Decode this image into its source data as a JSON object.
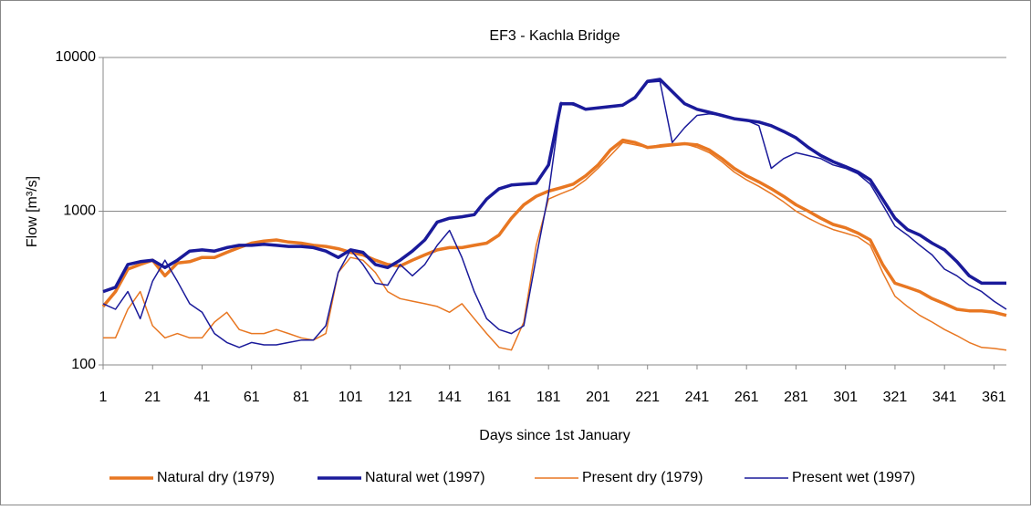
{
  "chart_data": {
    "type": "line",
    "title": "EF3 - Kachla Bridge",
    "x_label": "Days since 1st January",
    "y_label": "Flow [m³/s]",
    "x": [
      1,
      6,
      11,
      16,
      21,
      26,
      31,
      36,
      41,
      46,
      51,
      56,
      61,
      66,
      71,
      76,
      81,
      86,
      91,
      96,
      101,
      106,
      111,
      116,
      121,
      126,
      131,
      136,
      141,
      146,
      151,
      156,
      161,
      166,
      171,
      176,
      181,
      186,
      191,
      196,
      201,
      206,
      211,
      216,
      221,
      226,
      231,
      236,
      241,
      246,
      251,
      256,
      261,
      266,
      271,
      276,
      281,
      286,
      291,
      296,
      301,
      306,
      311,
      316,
      321,
      326,
      331,
      336,
      341,
      346,
      351,
      356,
      361,
      366
    ],
    "xlim": [
      1,
      366
    ],
    "xticks": [
      1,
      21,
      41,
      61,
      81,
      101,
      121,
      141,
      161,
      181,
      201,
      221,
      241,
      261,
      281,
      301,
      321,
      341,
      361
    ],
    "ylim": [
      100,
      10000
    ],
    "yticks": [
      100,
      1000,
      10000
    ],
    "log_y": true,
    "grid": true,
    "legend": "bottom",
    "series": [
      {
        "name": "Natural dry (1979)",
        "color": "#e87722",
        "width": 3.5,
        "values": [
          240,
          300,
          420,
          450,
          480,
          380,
          460,
          470,
          500,
          500,
          540,
          580,
          620,
          640,
          650,
          630,
          620,
          600,
          590,
          570,
          540,
          520,
          480,
          450,
          440,
          480,
          520,
          560,
          580,
          580,
          600,
          620,
          700,
          900,
          1100,
          1250,
          1350,
          1420,
          1500,
          1700,
          2000,
          2500,
          2900,
          2800,
          2600,
          2650,
          2700,
          2750,
          2700,
          2500,
          2200,
          1900,
          1700,
          1550,
          1400,
          1250,
          1100,
          1000,
          900,
          820,
          780,
          720,
          650,
          450,
          340,
          320,
          300,
          270,
          250,
          230,
          225,
          225,
          220,
          210
        ]
      },
      {
        "name": "Natural wet (1997)",
        "color": "#1a1a9a",
        "width": 3.5,
        "values": [
          300,
          320,
          450,
          470,
          480,
          430,
          480,
          550,
          560,
          550,
          580,
          600,
          600,
          610,
          600,
          590,
          590,
          580,
          550,
          500,
          560,
          540,
          450,
          430,
          480,
          550,
          650,
          850,
          900,
          920,
          950,
          1200,
          1400,
          1480,
          1500,
          1520,
          2000,
          5000,
          5000,
          4600,
          4700,
          4800,
          4900,
          5500,
          7000,
          7200,
          6000,
          5000,
          4600,
          4400,
          4200,
          4000,
          3900,
          3800,
          3600,
          3300,
          3000,
          2600,
          2300,
          2100,
          1950,
          1800,
          1600,
          1200,
          900,
          760,
          700,
          620,
          560,
          470,
          380,
          340,
          340,
          340
        ]
      },
      {
        "name": "Present dry (1979)",
        "color": "#e87722",
        "width": 1.5,
        "values": [
          150,
          150,
          230,
          300,
          180,
          150,
          160,
          150,
          150,
          190,
          220,
          170,
          160,
          160,
          170,
          160,
          150,
          145,
          160,
          400,
          500,
          480,
          400,
          300,
          270,
          260,
          250,
          240,
          220,
          250,
          200,
          160,
          130,
          125,
          190,
          600,
          1200,
          1300,
          1400,
          1600,
          1900,
          2300,
          2800,
          2700,
          2600,
          2700,
          2750,
          2750,
          2600,
          2400,
          2100,
          1800,
          1600,
          1450,
          1300,
          1150,
          1000,
          900,
          820,
          760,
          720,
          680,
          600,
          400,
          280,
          240,
          210,
          190,
          170,
          155,
          140,
          130,
          128,
          125
        ]
      },
      {
        "name": "Present wet (1997)",
        "color": "#1a1a9a",
        "width": 1.5,
        "values": [
          250,
          230,
          300,
          200,
          350,
          480,
          350,
          250,
          220,
          160,
          140,
          130,
          140,
          135,
          135,
          140,
          145,
          145,
          180,
          400,
          560,
          450,
          340,
          330,
          450,
          380,
          450,
          600,
          750,
          500,
          300,
          200,
          170,
          160,
          180,
          500,
          1300,
          5100,
          4900,
          4600,
          4700,
          4800,
          4900,
          5400,
          6900,
          7000,
          2800,
          3500,
          4200,
          4300,
          4200,
          4000,
          3900,
          3600,
          1900,
          2200,
          2400,
          2300,
          2200,
          2000,
          1900,
          1750,
          1500,
          1100,
          800,
          700,
          600,
          520,
          420,
          380,
          330,
          300,
          260,
          230
        ]
      }
    ]
  }
}
